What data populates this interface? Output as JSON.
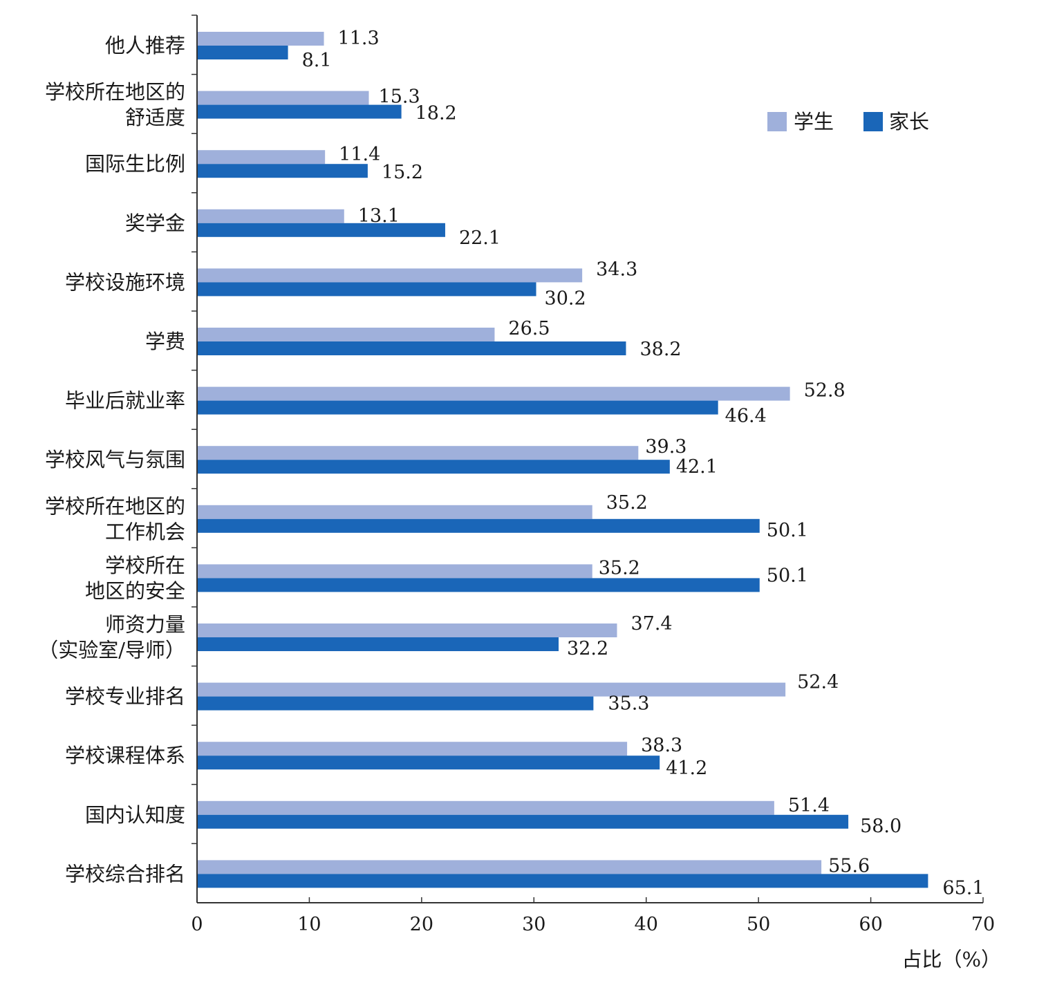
{
  "chart_data": {
    "type": "bar",
    "orientation": "horizontal",
    "categories": [
      [
        "他人推荐"
      ],
      [
        "学校所在地区的",
        "舒适度"
      ],
      [
        "国际生比例"
      ],
      [
        "奖学金"
      ],
      [
        "学校设施环境"
      ],
      [
        "学费"
      ],
      [
        "毕业后就业率"
      ],
      [
        "学校风气与氛围"
      ],
      [
        "学校所在地区的",
        "工作机会"
      ],
      [
        "学校所在",
        "地区的安全"
      ],
      [
        "师资力量",
        "（实验室/导师）"
      ],
      [
        "学校专业排名"
      ],
      [
        "学校课程体系"
      ],
      [
        "国内认知度"
      ],
      [
        "学校综合排名"
      ]
    ],
    "series": [
      {
        "name": "学生",
        "color": "#9fb0db",
        "values": [
          11.3,
          15.3,
          11.4,
          13.1,
          34.3,
          26.5,
          52.8,
          39.3,
          35.2,
          35.2,
          37.4,
          52.4,
          38.3,
          51.4,
          55.6
        ],
        "labels": [
          "11.3",
          "15.3",
          "11.4",
          "13.1",
          "34.3",
          "26.5",
          "52.8",
          "39.3",
          "35.2",
          "35.2",
          "37.4",
          "52.4",
          "38.3",
          "51.4",
          "55.6"
        ]
      },
      {
        "name": "家长",
        "color": "#1a66b8",
        "values": [
          8.1,
          18.2,
          15.2,
          22.1,
          30.2,
          38.2,
          46.4,
          42.1,
          50.1,
          50.1,
          32.2,
          35.3,
          41.2,
          58.0,
          65.1
        ],
        "labels": [
          "8.1",
          "18.2",
          "15.2",
          "22.1",
          "30.2",
          "38.2",
          "46.4",
          "42.1",
          "50.1",
          "50.1",
          "32.2",
          "35.3",
          "41.2",
          "58.0",
          "65.1"
        ]
      }
    ],
    "xlim": [
      0,
      70
    ],
    "xticks": [
      "0",
      "10",
      "20",
      "30",
      "40",
      "50",
      "60",
      "70"
    ],
    "xlabel": "占比（%）",
    "legend_position": "top-right",
    "grid": false
  }
}
